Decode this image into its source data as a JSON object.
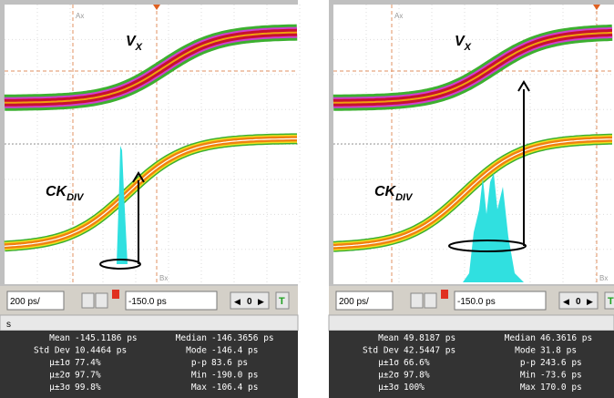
{
  "panels": [
    {
      "waveform_label": "V",
      "waveform_sub": "X",
      "clock_label": "CK",
      "clock_sub": "DIV",
      "marker_a": "Ax",
      "marker_b": "Bx",
      "timebase": "200 ps/",
      "offset": "-150.0 ps",
      "nav_value": "0",
      "trigger": "T",
      "tab": "s",
      "stats": [
        [
          "Mean",
          "-145.1186 ps",
          "Median",
          "-146.3656 ps"
        ],
        [
          "Std Dev",
          "10.4464 ps",
          "Mode",
          "-146.4 ps"
        ],
        [
          "µ±1σ",
          "77.4%",
          "p-p",
          "83.6 ps"
        ],
        [
          "µ±2σ",
          "97.7%",
          "Min",
          "-190.0 ps"
        ],
        [
          "µ±3σ",
          "99.8%",
          "Max",
          "-106.4 ps"
        ]
      ]
    },
    {
      "waveform_label": "V",
      "waveform_sub": "X",
      "clock_label": "CK",
      "clock_sub": "DIV",
      "marker_a": "Ax",
      "marker_b": "Bx",
      "timebase": "200 ps/",
      "offset": "-150.0 ps",
      "nav_value": "0",
      "trigger": "T",
      "stats": [
        [
          "Mean",
          "49.8187 ps",
          "Median",
          "46.3616 ps"
        ],
        [
          "Std Dev",
          "42.5447 ps",
          "Mode",
          "31.8 ps"
        ],
        [
          "µ±1σ",
          "66.6%",
          "p-p",
          "243.6 ps"
        ],
        [
          "µ±2σ",
          "97.8%",
          "Min",
          "-73.6 ps"
        ],
        [
          "µ±3σ",
          "100%",
          "Max",
          "170.0 ps"
        ]
      ]
    }
  ]
}
